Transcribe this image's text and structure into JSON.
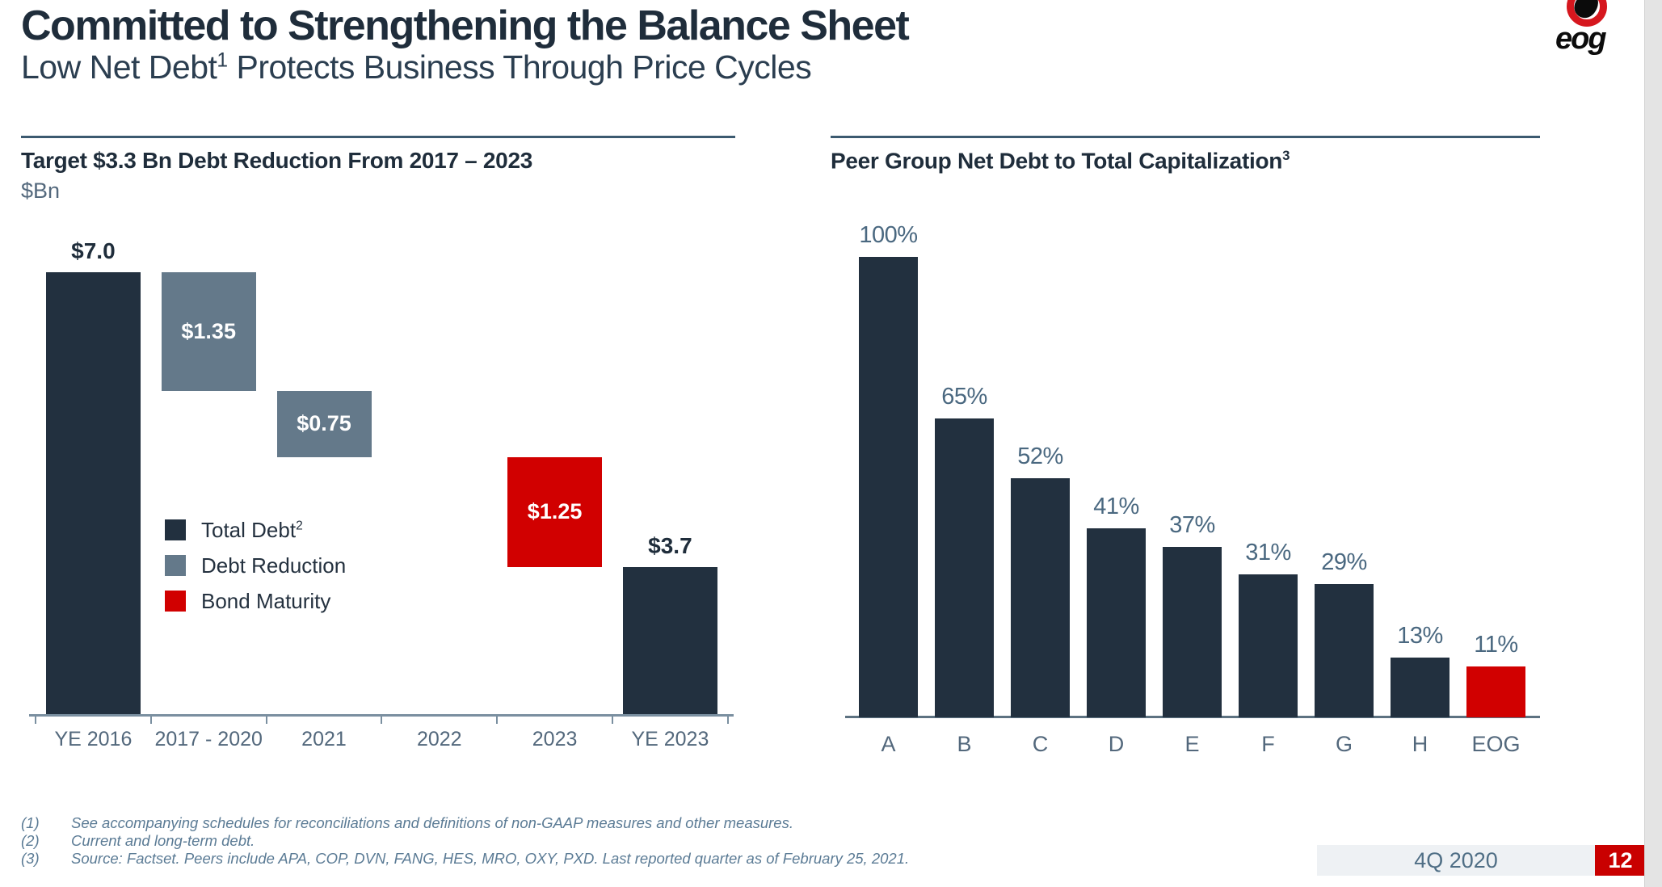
{
  "header": {
    "title": "Committed to Strengthening the Balance Sheet",
    "subtitle": {
      "prefix": "Low Net Debt",
      "sup": "1",
      "suffix": " Protects Business Through Price Cycles"
    },
    "logo_text": "eog",
    "logo_icon": "eog-egg-ring-icon",
    "brand_red": "#d6171e"
  },
  "chart_data": [
    {
      "type": "waterfall",
      "title": "Target $3.3 Bn Debt Reduction From 2017 – 2023",
      "unit": "$Bn",
      "categories": [
        "YE 2016",
        "2017 - 2020",
        "2021",
        "2022",
        "2023",
        "YE 2023"
      ],
      "bars": [
        {
          "category": "YE 2016",
          "value": 7.0,
          "label": "$7.0",
          "series": "total",
          "label_position": "above"
        },
        {
          "category": "2017 - 2020",
          "value": 1.35,
          "label": "$1.35",
          "series": "reduction",
          "label_position": "inside"
        },
        {
          "category": "2021",
          "value": 0.75,
          "label": "$0.75",
          "series": "reduction",
          "label_position": "inside"
        },
        {
          "category": "2022",
          "value": null,
          "label": "",
          "series": null,
          "label_position": "none"
        },
        {
          "category": "2023",
          "value": 1.25,
          "label": "$1.25",
          "series": "maturity",
          "label_position": "inside"
        },
        {
          "category": "YE 2023",
          "value": 3.7,
          "label": "$3.7",
          "series": "total",
          "label_position": "above"
        }
      ],
      "legend": [
        {
          "label": "Total Debt",
          "sup": "2",
          "series": "total"
        },
        {
          "label": "Debt Reduction",
          "sup": "",
          "series": "reduction"
        },
        {
          "label": "Bond Maturity",
          "sup": "",
          "series": "maturity"
        }
      ],
      "colors": {
        "total": "#22303f",
        "reduction": "#64798a",
        "maturity": "#d10000"
      },
      "legend_position": "center-left inside plot",
      "grid": false
    },
    {
      "type": "bar",
      "title": "Peer Group Net Debt to Total Capitalization",
      "title_sup": "3",
      "categories": [
        "A",
        "B",
        "C",
        "D",
        "E",
        "F",
        "G",
        "H",
        "EOG"
      ],
      "values": [
        100,
        65,
        52,
        41,
        37,
        31,
        29,
        13,
        11
      ],
      "labels": [
        "100%",
        "65%",
        "52%",
        "41%",
        "37%",
        "31%",
        "29%",
        "13%",
        "11%"
      ],
      "highlight_category": "EOG",
      "colors": {
        "default": "#22303f",
        "highlight": "#d10000"
      },
      "ylim": [
        0,
        100
      ],
      "grid": false
    }
  ],
  "footnotes": [
    {
      "num": "(1)",
      "text": "See accompanying schedules for reconciliations and definitions of non-GAAP measures and other measures."
    },
    {
      "num": "(2)",
      "text": "Current and long-term debt."
    },
    {
      "num": "(3)",
      "text": "Source: Factset. Peers include APA, COP, DVN, FANG, HES, MRO, OXY, PXD.  Last reported quarter as of February 25, 2021."
    }
  ],
  "footer": {
    "period": "4Q 2020",
    "page": "12"
  }
}
